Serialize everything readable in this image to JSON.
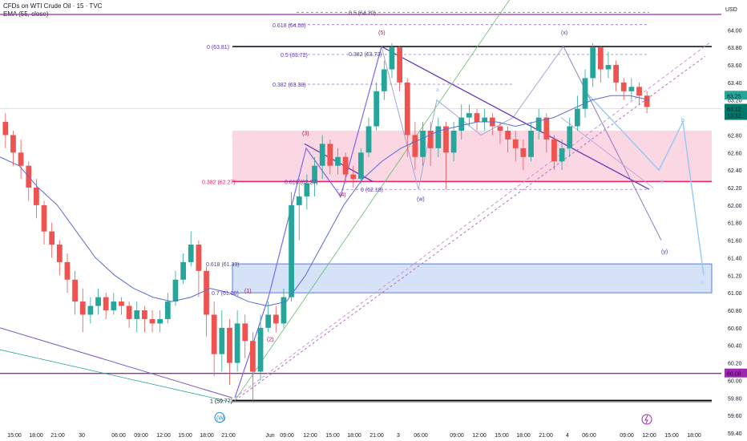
{
  "header": {
    "title": "CFDs on WTI Crude Oil · 15 · TVC",
    "indicator": "EMA (55, close)"
  },
  "colors": {
    "up": "#26a69a",
    "down": "#ef5350",
    "ema": "#5b6bd6",
    "resistance": "#131722",
    "support_level": "#e91e63",
    "purple_level": "#9c27b0",
    "pink_zone": "#f8bbd0",
    "blue_zone": "#c5d5f5",
    "wave_line": "#6a5acd",
    "projection": "#90caf9"
  },
  "chart_data": {
    "type": "candlestick",
    "title": "CFDs on WTI Crude Oil · 15 · TVC",
    "ylabel": "USD",
    "ylim": [
      59.4,
      64.25
    ],
    "y_ticks": [
      "64.00",
      "63.80",
      "63.60",
      "63.40",
      "63.20",
      "63.00",
      "62.80",
      "62.60",
      "62.40",
      "62.20",
      "62.00",
      "61.80",
      "61.60",
      "61.40",
      "61.20",
      "61.00",
      "60.80",
      "60.60",
      "60.40",
      "60.20",
      "60.00",
      "59.80",
      "59.60",
      "59.40"
    ],
    "x_ticks": [
      "15:00",
      "18:00",
      "21:00",
      "30",
      "06:00",
      "09:00",
      "12:00",
      "15:00",
      "18:00",
      "21:00",
      "Jun",
      "09:00",
      "12:00",
      "15:00",
      "18:00",
      "21:00",
      "3",
      "06:00",
      "09:00",
      "12:00",
      "15:00",
      "18:00",
      "21:00",
      "4",
      "06:00",
      "09:00",
      "12:00",
      "15:00",
      "18:00"
    ],
    "price_badges": [
      {
        "label": "USD",
        "value": "USD"
      },
      {
        "label": "last",
        "value": "63.25"
      },
      {
        "label": "current",
        "value": "63.12"
      },
      {
        "label": "countdown",
        "value": "13:32"
      },
      {
        "label": "support",
        "value": "60.08"
      }
    ],
    "series": [
      {
        "name": "EMA (55, close)",
        "values": [
          62.55,
          62.45,
          62.2,
          62.0,
          61.7,
          61.4,
          61.2,
          61.05,
          60.95,
          60.9,
          60.95,
          61.05,
          61.0,
          60.9,
          60.85,
          60.9,
          61.2,
          61.6,
          62.0,
          62.3,
          62.5,
          62.65,
          62.75,
          62.85,
          62.9,
          62.95,
          62.95,
          62.9,
          62.95,
          63.0,
          63.1,
          63.2,
          63.25,
          63.25,
          63.2
        ]
      }
    ],
    "candles": [
      [
        62.95,
        62.8,
        63.05,
        62.65
      ],
      [
        62.8,
        62.6,
        62.85,
        62.45
      ],
      [
        62.6,
        62.45,
        62.75,
        62.3
      ],
      [
        62.45,
        62.2,
        62.5,
        62.05
      ],
      [
        62.2,
        62.0,
        62.3,
        61.85
      ],
      [
        62.0,
        61.7,
        62.05,
        61.55
      ],
      [
        61.7,
        61.55,
        61.8,
        61.4
      ],
      [
        61.55,
        61.35,
        61.6,
        61.2
      ],
      [
        61.35,
        61.15,
        61.45,
        61.0
      ],
      [
        61.15,
        60.9,
        61.25,
        60.75
      ],
      [
        60.9,
        60.75,
        61.05,
        60.55
      ],
      [
        60.75,
        60.85,
        60.95,
        60.65
      ],
      [
        60.85,
        60.95,
        61.05,
        60.75
      ],
      [
        60.95,
        60.8,
        61.0,
        60.7
      ],
      [
        60.8,
        60.9,
        61.0,
        60.75
      ],
      [
        60.9,
        60.85,
        60.95,
        60.75
      ],
      [
        60.85,
        60.7,
        60.9,
        60.6
      ],
      [
        60.7,
        60.8,
        60.9,
        60.55
      ],
      [
        60.8,
        60.7,
        60.85,
        60.55
      ],
      [
        60.7,
        60.65,
        60.8,
        60.55
      ],
      [
        60.65,
        60.7,
        60.8,
        60.55
      ],
      [
        60.7,
        60.9,
        61.0,
        60.65
      ],
      [
        60.9,
        61.15,
        61.25,
        60.85
      ],
      [
        61.15,
        61.35,
        61.45,
        61.1
      ],
      [
        61.35,
        61.55,
        61.7,
        61.3
      ],
      [
        61.55,
        61.25,
        61.6,
        60.95
      ],
      [
        61.25,
        60.75,
        61.3,
        60.5
      ],
      [
        60.75,
        60.3,
        60.9,
        60.05
      ],
      [
        60.3,
        60.6,
        60.8,
        60.1
      ],
      [
        60.6,
        60.2,
        60.7,
        59.95
      ],
      [
        60.2,
        60.65,
        60.8,
        60.1
      ],
      [
        60.65,
        60.45,
        60.75,
        60.25
      ],
      [
        60.45,
        60.1,
        60.55,
        59.77
      ],
      [
        60.1,
        60.6,
        60.75,
        60.0
      ],
      [
        60.6,
        60.75,
        60.9,
        60.55
      ],
      [
        60.75,
        60.65,
        60.85,
        60.55
      ],
      [
        60.65,
        60.95,
        61.05,
        60.6
      ],
      [
        60.95,
        62.0,
        62.15,
        60.9
      ],
      [
        62.0,
        62.1,
        62.3,
        61.6
      ],
      [
        62.1,
        62.25,
        62.35,
        61.95
      ],
      [
        62.25,
        62.45,
        62.55,
        62.1
      ],
      [
        62.45,
        62.7,
        62.8,
        62.3
      ],
      [
        62.7,
        62.45,
        62.75,
        62.35
      ],
      [
        62.45,
        62.55,
        62.65,
        62.35
      ],
      [
        62.55,
        62.35,
        62.6,
        62.25
      ],
      [
        62.35,
        62.3,
        62.45,
        62.2
      ],
      [
        62.3,
        62.6,
        62.65,
        62.25
      ],
      [
        62.6,
        62.9,
        63.0,
        62.55
      ],
      [
        62.9,
        63.3,
        63.4,
        62.85
      ],
      [
        63.3,
        63.55,
        63.65,
        63.2
      ],
      [
        63.55,
        63.8,
        63.85,
        63.45
      ],
      [
        63.8,
        63.4,
        63.82,
        63.3
      ],
      [
        63.4,
        62.8,
        63.45,
        62.55
      ],
      [
        62.8,
        62.55,
        62.95,
        62.4
      ],
      [
        62.55,
        62.85,
        62.95,
        62.45
      ],
      [
        62.85,
        62.65,
        62.95,
        62.45
      ],
      [
        62.65,
        62.9,
        63.0,
        62.55
      ],
      [
        62.9,
        62.6,
        62.95,
        62.18
      ],
      [
        62.6,
        62.85,
        62.95,
        62.5
      ],
      [
        62.85,
        63.0,
        63.15,
        62.75
      ],
      [
        63.0,
        63.05,
        63.15,
        62.9
      ],
      [
        63.05,
        62.95,
        63.1,
        62.85
      ],
      [
        62.95,
        63.0,
        63.1,
        62.85
      ],
      [
        63.0,
        62.9,
        63.05,
        62.8
      ],
      [
        62.9,
        62.85,
        62.95,
        62.7
      ],
      [
        62.85,
        62.75,
        62.9,
        62.6
      ],
      [
        62.75,
        62.65,
        62.85,
        62.5
      ],
      [
        62.65,
        62.55,
        62.75,
        62.4
      ],
      [
        62.55,
        62.85,
        62.95,
        62.5
      ],
      [
        62.85,
        63.0,
        63.1,
        62.75
      ],
      [
        63.0,
        62.75,
        63.05,
        62.6
      ],
      [
        62.75,
        62.5,
        62.8,
        62.4
      ],
      [
        62.5,
        62.65,
        62.75,
        62.4
      ],
      [
        62.65,
        62.9,
        63.0,
        62.55
      ],
      [
        62.9,
        63.1,
        63.25,
        62.85
      ],
      [
        63.1,
        63.45,
        63.55,
        63.0
      ],
      [
        63.45,
        63.8,
        63.85,
        63.35
      ],
      [
        63.8,
        63.55,
        63.82,
        63.4
      ],
      [
        63.55,
        63.6,
        63.75,
        63.45
      ],
      [
        63.6,
        63.4,
        63.65,
        63.3
      ],
      [
        63.4,
        63.3,
        63.45,
        63.2
      ],
      [
        63.3,
        63.35,
        63.45,
        63.2
      ],
      [
        63.35,
        63.25,
        63.4,
        63.15
      ],
      [
        63.25,
        63.12,
        63.3,
        63.05
      ]
    ],
    "fib_levels": [
      {
        "label": "0.5 (64.20)",
        "price": 64.2
      },
      {
        "label": "0.618 (64.06)",
        "price": 64.06
      },
      {
        "label": "0 (63.81)",
        "price": 63.81
      },
      {
        "label": "0.5 (63.72)",
        "price": 63.72
      },
      {
        "label": "0.382 (63.73)",
        "price": 63.73
      },
      {
        "label": "0.382 (63.38)",
        "price": 63.38
      },
      {
        "label": "0.382 (62.27)",
        "price": 62.27
      },
      {
        "label": "0.618 (62.27)",
        "price": 62.27
      },
      {
        "label": "0 (62.18)",
        "price": 62.18
      },
      {
        "label": "0.618 (61.33)",
        "price": 61.33
      },
      {
        "label": "0.7 (61.00)",
        "price": 61.0
      },
      {
        "label": "1 (59.77)",
        "price": 59.77
      }
    ],
    "wave_labels": [
      {
        "label": "(1)",
        "price": 61.0
      },
      {
        "label": "(2)",
        "price": 60.45
      },
      {
        "label": "(3)",
        "price": 62.8
      },
      {
        "label": "(4)",
        "price": 62.1
      },
      {
        "label": "(5)",
        "price": 63.95
      },
      {
        "label": "(x)",
        "price": 63.95
      },
      {
        "label": "(w)",
        "price": 62.05
      },
      {
        "label": "(y)",
        "price": 61.45
      },
      {
        "label": "a",
        "price": 63.3
      },
      {
        "label": "a",
        "price": 62.25
      },
      {
        "label": "b",
        "price": 62.95
      },
      {
        "label": "c",
        "price": 61.1
      },
      {
        "label": "(W)",
        "price": 59.55
      }
    ],
    "zones": [
      {
        "name": "pink",
        "from": 62.27,
        "to": 62.85
      },
      {
        "name": "blue",
        "from": 61.0,
        "to": 61.33
      }
    ],
    "lines": [
      {
        "name": "top-resistance",
        "price": 63.81
      },
      {
        "name": "support-62.27",
        "price": 62.27
      },
      {
        "name": "support-60.08",
        "price": 60.08
      },
      {
        "name": "bottom-59.77",
        "price": 59.77
      }
    ]
  }
}
